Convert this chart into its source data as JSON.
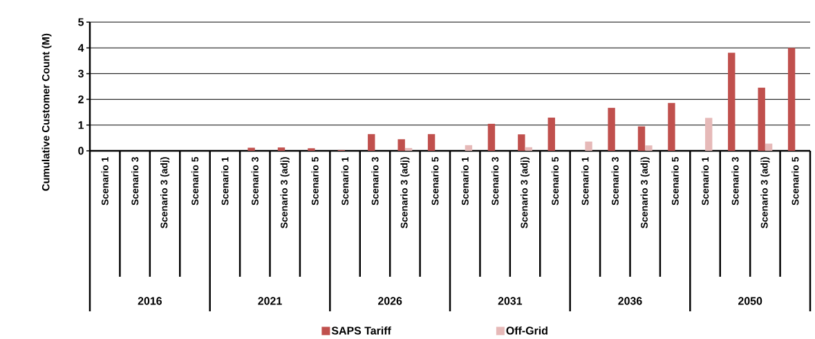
{
  "chart_data": {
    "type": "bar",
    "ylabel": "Cumulative Customer Count (M)",
    "categories": [
      "Scenario 1",
      "Scenario 3",
      "Scenario 3 (adj)",
      "Scenario 5",
      "Scenario 1",
      "Scenario 3",
      "Scenario 3 (adj)",
      "Scenario 5",
      "Scenario 1",
      "Scenario 3",
      "Scenario 3 (adj)",
      "Scenario 5",
      "Scenario 1",
      "Scenario 3",
      "Scenario 3 (adj)",
      "Scenario 5",
      "Scenario 1",
      "Scenario 3",
      "Scenario 3 (adj)",
      "Scenario 5",
      "Scenario 1",
      "Scenario 3",
      "Scenario 3 (adj)",
      "Scenario 5"
    ],
    "annotations": [
      "2016",
      "2021",
      "2026",
      "2031",
      "2036",
      "2050"
    ],
    "series": [
      {
        "name": "SAPS Tariff",
        "color": "#c0504d",
        "values": [
          0,
          0,
          0,
          0,
          0,
          0.12,
          0.13,
          0.1,
          0.03,
          0.65,
          0.45,
          0.65,
          0,
          1.05,
          0.64,
          1.29,
          0,
          1.67,
          0.95,
          1.86,
          0,
          3.81,
          2.45,
          4.0
        ]
      },
      {
        "name": "Off-Grid",
        "color": "#e6b9b8",
        "values": [
          0,
          0,
          0,
          0,
          0,
          0,
          0,
          0,
          0,
          0,
          0.11,
          0,
          0.22,
          0,
          0.14,
          0,
          0.36,
          0,
          0.21,
          0,
          1.28,
          0,
          0.28,
          0
        ]
      }
    ],
    "ylim": [
      0,
      5
    ],
    "yticks": [
      0,
      1,
      2,
      3,
      4,
      5
    ],
    "grid": "y",
    "legend": "bottom"
  }
}
